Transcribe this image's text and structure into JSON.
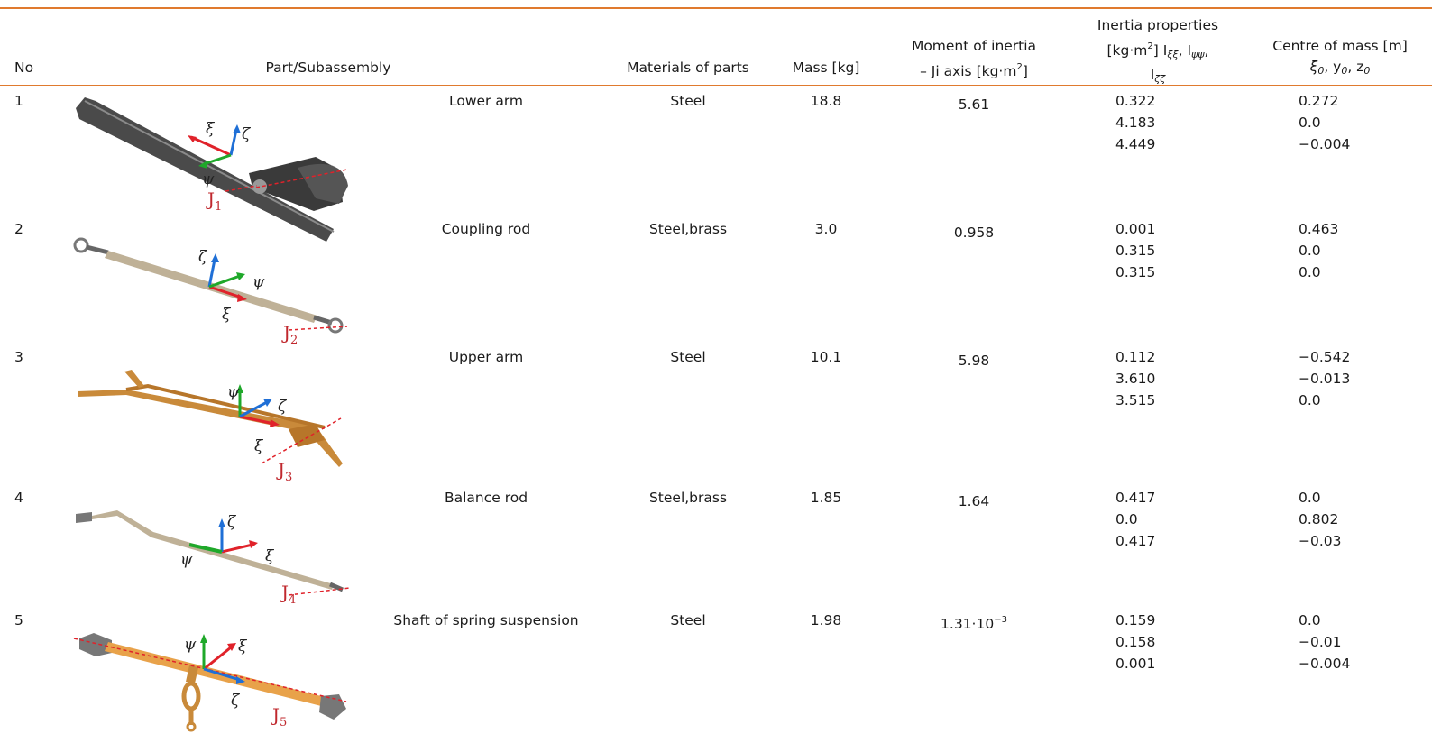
{
  "table": {
    "headers": {
      "no": "No",
      "part": "Part/Subassembly",
      "materials": "Materials of parts",
      "mass": "Mass [kg]",
      "moment_line1": "Moment of inertia",
      "moment_line2": "– Ji axis [kg·m",
      "moment_sup": "2",
      "moment_end": "]",
      "inertia_line1": "Inertia properties",
      "inertia_line2a": "[kg·m",
      "inertia_sup": "2",
      "inertia_line2b": "] I",
      "inertia_sub1": "ξξ",
      "inertia_sep1": ", I",
      "inertia_sub2": "ψψ",
      "inertia_sep2": ",",
      "inertia_line3": "I",
      "inertia_sub3": "ζζ",
      "com_line1": "Centre of mass [m]",
      "com_line2": "ξ",
      "com_sub1": "0",
      "com_sep1": ", y",
      "com_sub2": "0",
      "com_sep2": ", z",
      "com_sub3": "0"
    },
    "rows": [
      {
        "no": "1",
        "part": "Lower arm",
        "material": "Steel",
        "mass": "18.8",
        "moment": "5.61",
        "moment_sup": "",
        "inertia": [
          "0.322",
          "4.183",
          "4.449"
        ],
        "com": [
          "0.272",
          "0.0",
          "−0.004"
        ],
        "axes": [
          "ξ",
          "ζ",
          "ψ"
        ],
        "joint": "J",
        "joint_sub": "1"
      },
      {
        "no": "2",
        "part": "Coupling rod",
        "material": "Steel,brass",
        "mass": "3.0",
        "moment": "0.958",
        "moment_sup": "",
        "inertia": [
          "0.001",
          "0.315",
          "0.315"
        ],
        "com": [
          "0.463",
          "0.0",
          "0.0"
        ],
        "axes": [
          "ζ",
          "ψ",
          "ξ"
        ],
        "joint": "J",
        "joint_sub": "2"
      },
      {
        "no": "3",
        "part": "Upper arm",
        "material": "Steel",
        "mass": "10.1",
        "moment": "5.98",
        "moment_sup": "",
        "inertia": [
          "0.112",
          "3.610",
          "3.515"
        ],
        "com": [
          "−0.542",
          "−0.013",
          "0.0"
        ],
        "axes": [
          "ψ",
          "ζ",
          "ξ"
        ],
        "joint": "J",
        "joint_sub": "3"
      },
      {
        "no": "4",
        "part": "Balance rod",
        "material": "Steel,brass",
        "mass": "1.85",
        "moment": "1.64",
        "moment_sup": "",
        "inertia": [
          "0.417",
          "0.0",
          "0.417"
        ],
        "com": [
          "0.0",
          "0.802",
          "−0.03"
        ],
        "axes": [
          "ζ",
          "ψ",
          "ξ"
        ],
        "joint": "J",
        "joint_sub": "4"
      },
      {
        "no": "5",
        "part": "Shaft of spring suspension",
        "material": "Steel",
        "mass": "1.98",
        "moment": "1.31·10",
        "moment_sup": "−3",
        "inertia": [
          "0.159",
          "0.158",
          "0.001"
        ],
        "com": [
          "0.0",
          "−0.01",
          "−0.004"
        ],
        "axes": [
          "ψ",
          "ξ",
          "ζ"
        ],
        "joint": "J",
        "joint_sub": "5"
      }
    ]
  },
  "colors": {
    "rule": "#e07a2e",
    "axis_xi": "#e0222a",
    "axis_psi": "#1fa82a",
    "axis_zeta": "#1f6fd6",
    "joint_label": "#c0282e"
  }
}
